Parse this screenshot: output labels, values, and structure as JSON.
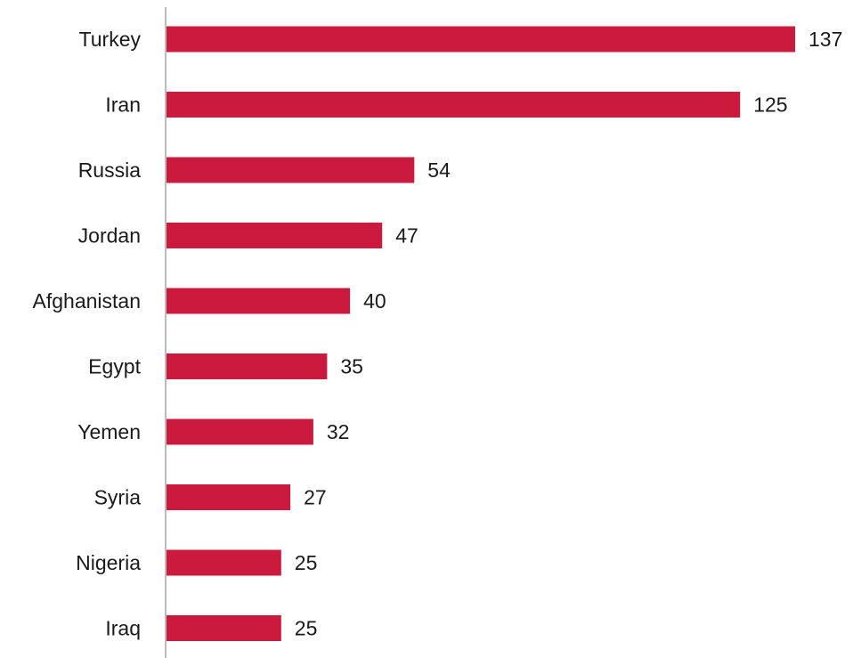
{
  "chart_data": {
    "type": "bar",
    "orientation": "horizontal",
    "categories": [
      "Turkey",
      "Iran",
      "Russia",
      "Jordan",
      "Afghanistan",
      "Egypt",
      "Yemen",
      "Syria",
      "Nigeria",
      "Iraq"
    ],
    "series": [
      {
        "values": [
          137,
          125,
          54,
          47,
          40,
          35,
          32,
          27,
          25,
          25
        ],
        "color": "#cc1a3e"
      }
    ],
    "data_labels": true,
    "grid": false,
    "legend": "none",
    "xlim": [
      0,
      137
    ]
  }
}
